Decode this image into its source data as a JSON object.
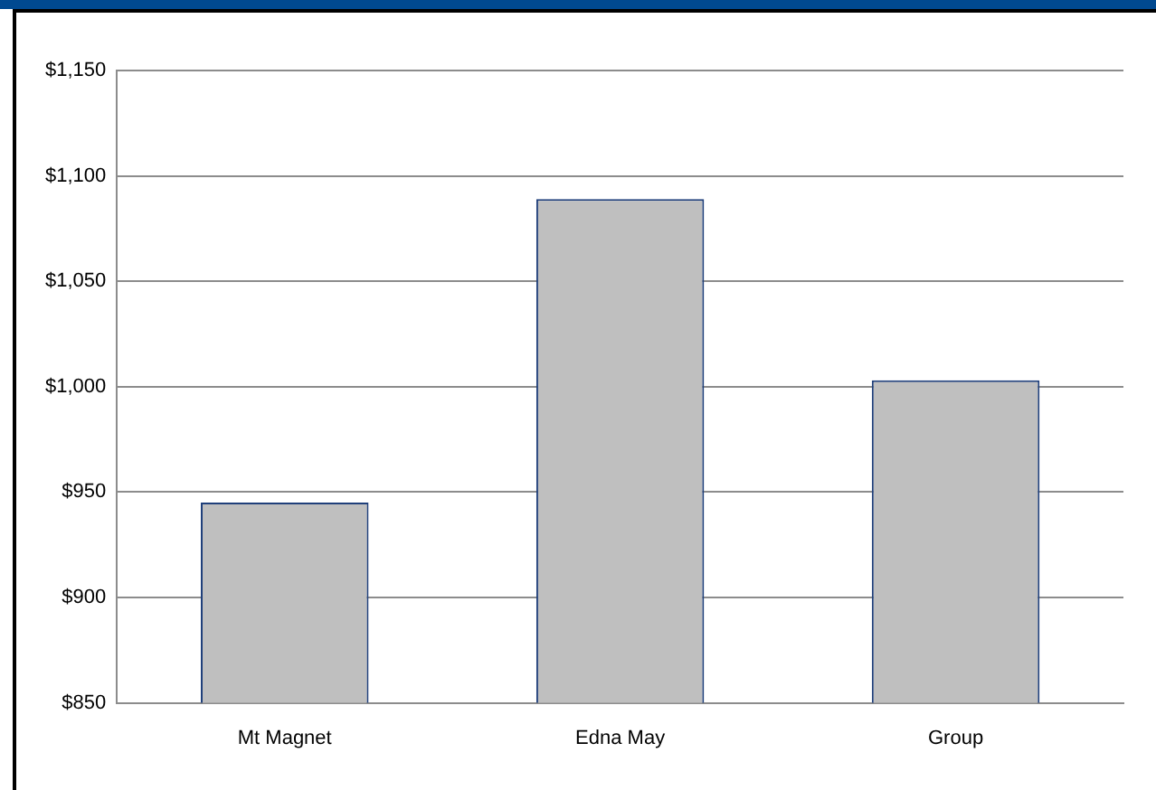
{
  "chart_data": {
    "type": "bar",
    "categories": [
      "Mt Magnet",
      "Edna May",
      "Group"
    ],
    "values": [
      945,
      1089,
      1003
    ],
    "color": "#bfbfbf",
    "ylim": [
      850,
      1150
    ],
    "yticks": [
      {
        "value": 850,
        "label": "$850"
      },
      {
        "value": 900,
        "label": "$900"
      },
      {
        "value": 950,
        "label": "$950"
      },
      {
        "value": 1000,
        "label": "$1,000"
      },
      {
        "value": 1050,
        "label": "$1,050"
      },
      {
        "value": 1100,
        "label": "$1,100"
      },
      {
        "value": 1150,
        "label": "$1,150"
      }
    ],
    "grid": "y",
    "legend": false
  }
}
